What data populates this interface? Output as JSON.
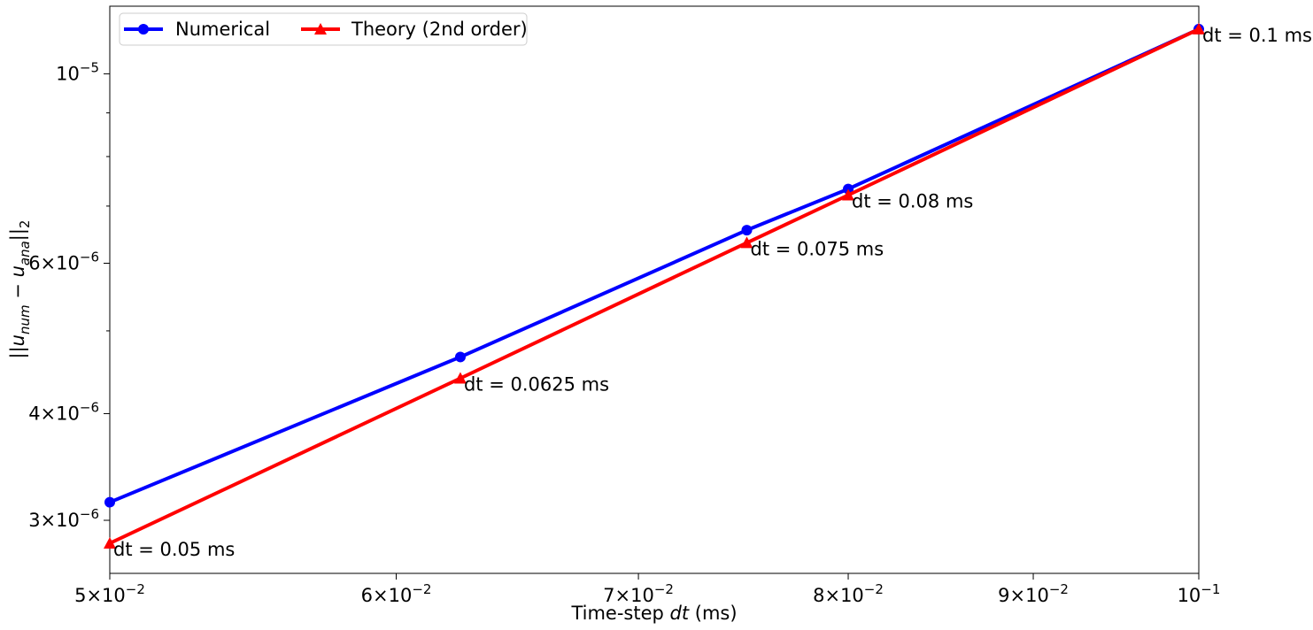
{
  "chart_data": {
    "type": "line",
    "title": "",
    "xlabel": "Time-step dt (ms)",
    "xlabel_parts": {
      "pre": "Time-step ",
      "var": "dt",
      "post": " (ms)"
    },
    "ylabel": "||u_num − u_ana||_2",
    "x_scale": "log",
    "y_scale": "log",
    "xlim": [
      0.05,
      0.1
    ],
    "ylim": [
      2.6e-06,
      1.2e-05
    ],
    "grid": false,
    "legend_position": "upper-left",
    "x_ticks": [
      {
        "value": 0.05,
        "mant": "5",
        "base": "10",
        "exp": "−2"
      },
      {
        "value": 0.06,
        "mant": "6",
        "base": "10",
        "exp": "−2"
      },
      {
        "value": 0.07,
        "mant": "7",
        "base": "10",
        "exp": "−2"
      },
      {
        "value": 0.08,
        "mant": "8",
        "base": "10",
        "exp": "−2"
      },
      {
        "value": 0.09,
        "mant": "9",
        "base": "10",
        "exp": "−2"
      },
      {
        "value": 0.1,
        "mant": "",
        "base": "10",
        "exp": "−1"
      }
    ],
    "y_ticks": [
      {
        "value": 3e-06,
        "mant": "3",
        "base": "10",
        "exp": "−6"
      },
      {
        "value": 4e-06,
        "mant": "4",
        "base": "10",
        "exp": "−6"
      },
      {
        "value": 6e-06,
        "mant": "6",
        "base": "10",
        "exp": "−6"
      },
      {
        "value": 1e-05,
        "mant": "",
        "base": "10",
        "exp": "−5"
      }
    ],
    "y_minor_ticks": [
      5e-06,
      7e-06,
      8e-06,
      9e-06
    ],
    "series": [
      {
        "name": "Numerical",
        "color": "#0000ff",
        "marker": "circle",
        "x": [
          0.05,
          0.0625,
          0.075,
          0.08,
          0.1
        ],
        "y": [
          3.15e-06,
          4.66e-06,
          6.56e-06,
          7.33e-06,
          1.128e-05
        ]
      },
      {
        "name": "Theory (2nd order)",
        "color": "#ff0000",
        "marker": "triangle",
        "x": [
          0.05,
          0.0625,
          0.075,
          0.08,
          0.1
        ],
        "y": [
          2.82e-06,
          4.4e-06,
          6.34e-06,
          7.21e-06,
          1.128e-05
        ]
      }
    ],
    "annotations": [
      {
        "text": "dt = 0.05 ms",
        "x": 0.05,
        "y": 2.82e-06
      },
      {
        "text": "dt = 0.0625 ms",
        "x": 0.0625,
        "y": 4.4e-06
      },
      {
        "text": "dt = 0.075 ms",
        "x": 0.075,
        "y": 6.34e-06
      },
      {
        "text": "dt = 0.08 ms",
        "x": 0.08,
        "y": 7.21e-06
      },
      {
        "text": "dt = 0.1 ms",
        "x": 0.1,
        "y": 1.128e-05
      }
    ]
  }
}
